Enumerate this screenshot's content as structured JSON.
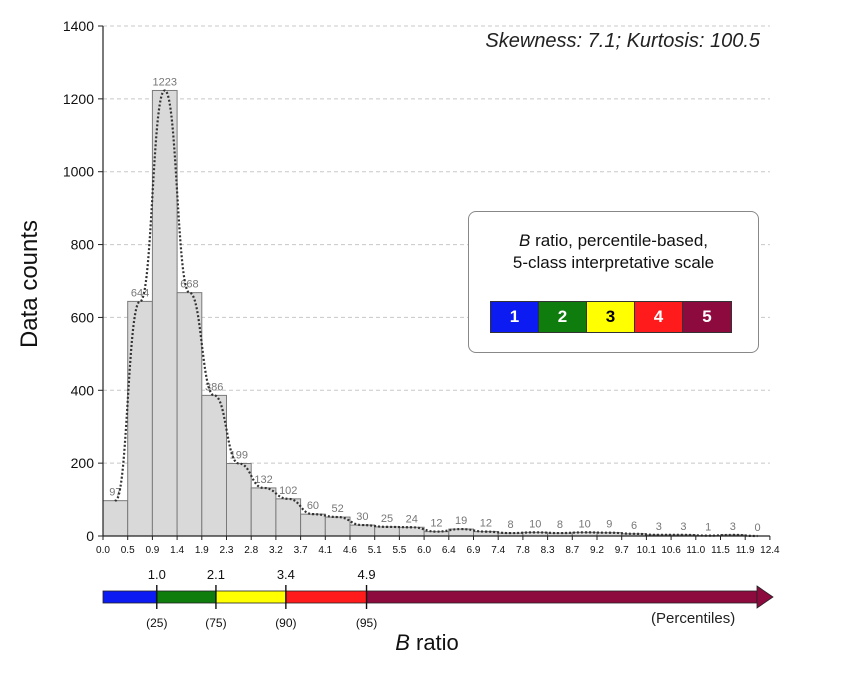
{
  "stats_text": "Skewness: 7.1; Kurtosis: 100.5",
  "legend": {
    "title_var": "B",
    "title_line1_rest": " ratio, percentile-based,",
    "title_line2": "5-class interpretative scale",
    "classes": [
      {
        "label": "1",
        "color": "#0b1bf2",
        "text_color": "#ffffff"
      },
      {
        "label": "2",
        "color": "#0e7d0e",
        "text_color": "#ffffff"
      },
      {
        "label": "3",
        "color": "#ffff00",
        "text_color": "#000000"
      },
      {
        "label": "4",
        "color": "#ff1b1b",
        "text_color": "#ffffff"
      },
      {
        "label": "5",
        "color": "#8c0a3e",
        "text_color": "#ffffff"
      }
    ]
  },
  "x_title_var": "B",
  "x_title_rest": " ratio",
  "percentile_note": "(Percentiles)",
  "percentile_scale": {
    "thresholds": [
      {
        "value": "1.0",
        "percentile": "(25)",
        "position": 1.0
      },
      {
        "value": "2.1",
        "percentile": "(75)",
        "position": 2.1
      },
      {
        "value": "3.4",
        "percentile": "(90)",
        "position": 3.4
      },
      {
        "value": "4.9",
        "percentile": "(95)",
        "position": 4.9
      }
    ],
    "colors": [
      "#0b1bf2",
      "#0e7d0e",
      "#ffff00",
      "#ff1b1b",
      "#8c0a3e"
    ]
  },
  "chart_data": {
    "type": "bar",
    "xlabel": "",
    "ylabel": "Data counts",
    "ylim": [
      0,
      1400
    ],
    "yticks": [
      0,
      200,
      400,
      600,
      800,
      1000,
      1200,
      1400
    ],
    "grid": "horizontal dashed",
    "bin_edges": [
      "0.0",
      "0.5",
      "0.9",
      "1.4",
      "1.9",
      "2.3",
      "2.8",
      "3.2",
      "3.7",
      "4.1",
      "4.6",
      "5.1",
      "5.5",
      "6.0",
      "6.4",
      "6.9",
      "7.4",
      "7.8",
      "8.3",
      "8.7",
      "9.2",
      "9.7",
      "10.1",
      "10.6",
      "11.0",
      "11.5",
      "11.9",
      "12.4"
    ],
    "values": [
      97,
      644,
      1223,
      668,
      386,
      199,
      132,
      102,
      60,
      52,
      30,
      25,
      24,
      12,
      19,
      12,
      8,
      10,
      8,
      10,
      9,
      6,
      3,
      3,
      1,
      3,
      0
    ],
    "density_curve": "dotted"
  }
}
